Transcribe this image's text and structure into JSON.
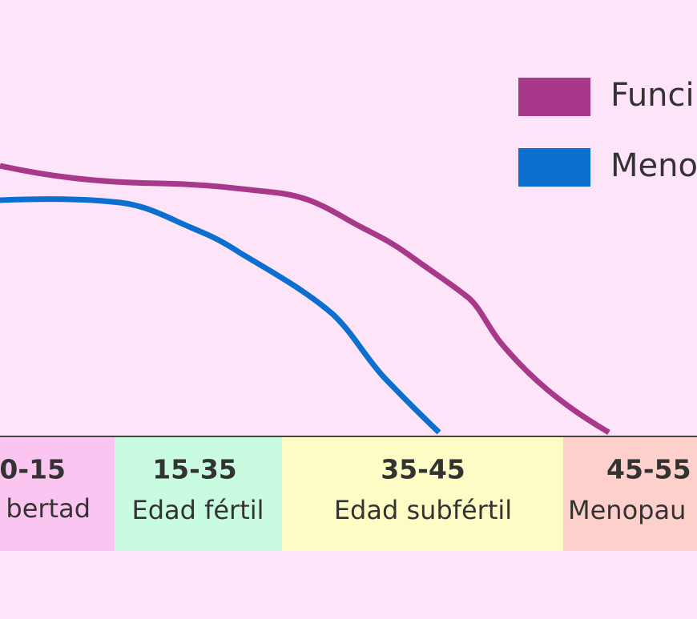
{
  "legend": [
    {
      "label": "Funci"
    },
    {
      "label": "Meno"
    }
  ],
  "stages": [
    {
      "range": "0-15",
      "label": "bertad"
    },
    {
      "range": "15-35",
      "label": "Edad fértil"
    },
    {
      "range": "35-45",
      "label": "Edad subfértil"
    },
    {
      "range": "45-55",
      "label": "Menopau"
    }
  ]
}
